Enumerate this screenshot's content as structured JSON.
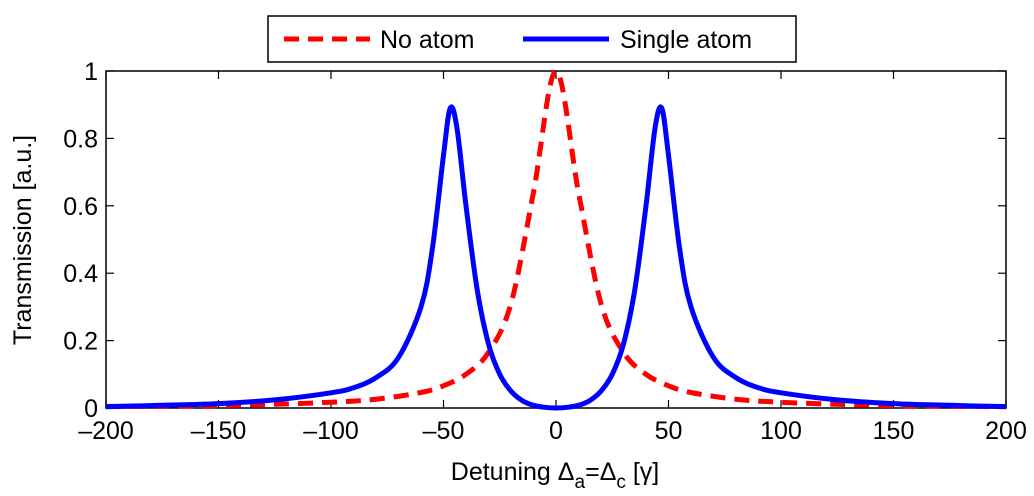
{
  "chart_data": {
    "type": "line",
    "xlabel": {
      "prefix": "Detuning ",
      "delta": "Δ",
      "sub_a": "a",
      "equals": "=",
      "sub_c": "c",
      "unit": " [γ]"
    },
    "ylabel": "Transmission [a.u.]",
    "xlim": [
      -200,
      200
    ],
    "ylim": [
      0,
      1
    ],
    "xticks": [
      "–200",
      "–150",
      "–100",
      "–50",
      "0",
      "50",
      "100",
      "150",
      "200"
    ],
    "yticks": [
      "0",
      "0.2",
      "0.4",
      "0.6",
      "0.8",
      "1"
    ],
    "grid": false,
    "legend_position": "top-center",
    "series": [
      {
        "name": "No atom",
        "color": "#ff0000",
        "style": "dashed",
        "x": [
          -200,
          -175,
          -150,
          -125,
          -100,
          -80,
          -60,
          -50,
          -40,
          -30,
          -20,
          -10,
          0,
          10,
          20,
          30,
          40,
          50,
          60,
          80,
          100,
          125,
          150,
          175,
          200
        ],
        "y": [
          0.004,
          0.005,
          0.007,
          0.011,
          0.017,
          0.026,
          0.046,
          0.066,
          0.1,
          0.165,
          0.31,
          0.64,
          1.0,
          0.64,
          0.31,
          0.165,
          0.1,
          0.066,
          0.046,
          0.026,
          0.017,
          0.011,
          0.007,
          0.005,
          0.004
        ]
      },
      {
        "name": "Single atom",
        "color": "#0000ff",
        "style": "solid",
        "x": [
          -200,
          -175,
          -150,
          -125,
          -100,
          -90,
          -80,
          -70,
          -60,
          -55,
          -50,
          -47,
          -44,
          -40,
          -35,
          -30,
          -25,
          -20,
          -15,
          -10,
          -5,
          0,
          5,
          10,
          15,
          20,
          25,
          30,
          35,
          40,
          44,
          47,
          50,
          55,
          60,
          70,
          80,
          90,
          100,
          125,
          150,
          175,
          200
        ],
        "y": [
          0.004,
          0.008,
          0.013,
          0.024,
          0.045,
          0.06,
          0.09,
          0.15,
          0.3,
          0.47,
          0.75,
          0.89,
          0.83,
          0.6,
          0.35,
          0.19,
          0.1,
          0.05,
          0.022,
          0.008,
          0.002,
          0.0,
          0.002,
          0.008,
          0.022,
          0.05,
          0.1,
          0.19,
          0.35,
          0.6,
          0.83,
          0.89,
          0.75,
          0.47,
          0.3,
          0.15,
          0.09,
          0.06,
          0.045,
          0.024,
          0.013,
          0.008,
          0.004
        ]
      }
    ]
  }
}
